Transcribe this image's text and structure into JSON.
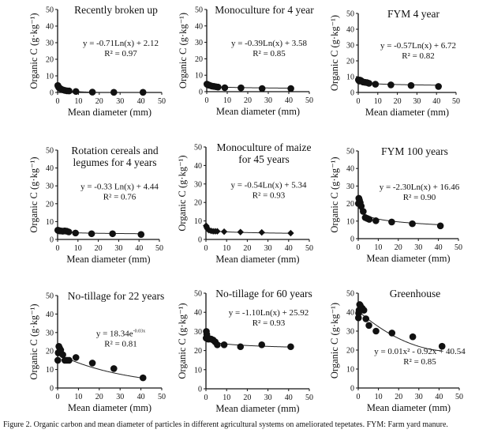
{
  "caption": "Figure 2. Organic carbon and mean diameter of particles in different agricultural systems on ameliorated tepetates. FYM: Farm yard manure.",
  "chart_data": [
    {
      "type": "scatter",
      "title": [
        "Recently broken up"
      ],
      "xlabel": "Mean diameter (mm)",
      "ylabel": "Organic C (g·kg⁻¹)",
      "xlim": [
        0,
        50
      ],
      "ylim": [
        0,
        50
      ],
      "xticks": [
        0,
        10,
        20,
        30,
        40,
        50
      ],
      "yticks": [
        0,
        10,
        20,
        30,
        40,
        50
      ],
      "marker": "circle",
      "equation": "y = -0.71Ln(x) + 2.12",
      "r2": "R² = 0.97",
      "annotation_position": "center",
      "fit": {
        "kind": "log",
        "a": -0.71,
        "b": 2.12
      },
      "points": {
        "x": [
          0.1,
          0.3,
          0.6,
          1.0,
          1.5,
          2.5,
          3.5,
          4.5,
          5.5,
          8.8,
          16.7,
          27.0,
          41.0
        ],
        "y": [
          4.2,
          3.6,
          3.0,
          2.6,
          2.2,
          1.6,
          1.2,
          1.0,
          0.9,
          0.6,
          0.2,
          0.1,
          0.1
        ]
      }
    },
    {
      "type": "scatter",
      "title": [
        "Monoculture for 4 year"
      ],
      "xlabel": "Mean diameter (mm)",
      "ylabel": "Organic C (g·kg⁻¹)",
      "xlim": [
        0,
        50
      ],
      "ylim": [
        0,
        50
      ],
      "xticks": [
        0,
        10,
        20,
        30,
        40,
        50
      ],
      "yticks": [
        0,
        10,
        20,
        30,
        40,
        50
      ],
      "marker": "circle",
      "equation": "y = -0.39Ln(x) + 3.58",
      "r2": "R² = 0.85",
      "annotation_position": "center",
      "fit": {
        "kind": "log",
        "a": -0.39,
        "b": 3.58
      },
      "points": {
        "x": [
          0.1,
          0.3,
          0.6,
          1.0,
          1.5,
          2.5,
          3.5,
          4.5,
          5.5,
          8.8,
          16.7,
          27.0,
          41.0
        ],
        "y": [
          4.6,
          4.4,
          4.2,
          4.0,
          3.8,
          3.4,
          3.2,
          3.0,
          2.8,
          2.4,
          2.3,
          1.9,
          1.9
        ]
      }
    },
    {
      "type": "scatter",
      "title": [
        "FYM 4 year"
      ],
      "xlabel": "Mean diameter (mm)",
      "ylabel": "Organic C (g·kg⁻¹)",
      "xlim": [
        0,
        50
      ],
      "ylim": [
        0,
        50
      ],
      "xticks": [
        0,
        10,
        20,
        30,
        40,
        50
      ],
      "yticks": [
        0,
        10,
        20,
        30,
        40,
        50
      ],
      "marker": "circle",
      "equation": "y = -0.57Ln(x) + 6.72",
      "r2": "R² = 0.82",
      "annotation_position": "center",
      "fit": {
        "kind": "log",
        "a": -0.57,
        "b": 6.72
      },
      "points": {
        "x": [
          0.1,
          0.3,
          0.6,
          1.0,
          1.5,
          2.5,
          3.5,
          4.5,
          5.5,
          8.8,
          16.7,
          27.0,
          41.0
        ],
        "y": [
          8.0,
          7.6,
          7.2,
          7.8,
          7.4,
          6.6,
          6.4,
          6.2,
          5.8,
          5.2,
          4.8,
          4.4,
          3.8
        ]
      }
    },
    {
      "type": "scatter",
      "title": [
        "Rotation cereals and",
        "legumes for 4 years"
      ],
      "xlabel": "Mean diameter (mm)",
      "ylabel": "Organic C (g·kg⁻¹)",
      "xlim": [
        0,
        50
      ],
      "ylim": [
        0,
        50
      ],
      "xticks": [
        0,
        10,
        20,
        30,
        40,
        50
      ],
      "yticks": [
        0,
        10,
        20,
        30,
        40,
        50
      ],
      "marker": "circle",
      "equation": "y = -0.33 Ln(x) + 4.44",
      "r2": "R² = 0.76",
      "annotation_position": "center",
      "fit": {
        "kind": "log",
        "a": -0.33,
        "b": 4.44
      },
      "points": {
        "x": [
          0.1,
          0.3,
          0.6,
          1.0,
          1.5,
          2.5,
          3.5,
          4.5,
          5.5,
          8.8,
          16.7,
          27.0,
          41.0
        ],
        "y": [
          5.2,
          5.0,
          5.0,
          4.8,
          4.8,
          4.6,
          4.8,
          4.6,
          4.2,
          3.6,
          3.2,
          3.2,
          2.8
        ]
      }
    },
    {
      "type": "scatter",
      "title": [
        "Monoculture of maize",
        "for 45 years"
      ],
      "xlabel": "Mean diameter (mm)",
      "ylabel": "Organic C (g·kg⁻¹)",
      "xlim": [
        0,
        50
      ],
      "ylim": [
        0,
        50
      ],
      "xticks": [
        0,
        10,
        20,
        30,
        40,
        50
      ],
      "yticks": [
        0,
        10,
        20,
        30,
        40,
        50
      ],
      "marker": "diamond",
      "equation": "y = -0.54Ln(x) + 5.34",
      "r2": "R² = 0.93",
      "annotation_position": "center",
      "fit": {
        "kind": "log",
        "a": -0.54,
        "b": 5.34
      },
      "points": {
        "x": [
          0.1,
          0.3,
          0.6,
          1.0,
          1.5,
          2.5,
          3.5,
          4.5,
          5.5,
          8.8,
          16.7,
          27.0,
          41.0
        ],
        "y": [
          7.4,
          6.8,
          6.0,
          5.4,
          5.0,
          4.6,
          4.4,
          4.4,
          4.4,
          4.2,
          4.0,
          3.8,
          3.4
        ]
      }
    },
    {
      "type": "scatter",
      "title": [
        "FYM 100 years"
      ],
      "xlabel": "Mean diameter (mm)",
      "ylabel": "Organic C (g·kg⁻¹)",
      "xlim": [
        0,
        50
      ],
      "ylim": [
        0,
        50
      ],
      "xticks": [
        0,
        10,
        20,
        30,
        40,
        50
      ],
      "yticks": [
        0,
        10,
        20,
        30,
        40,
        50
      ],
      "marker": "circle",
      "equation": "y = -2.30Ln(x) + 16.46",
      "r2": "R² = 0.90",
      "annotation_position": "center",
      "fit": {
        "kind": "log",
        "a": -2.3,
        "b": 16.46
      },
      "points": {
        "x": [
          0.1,
          0.3,
          0.6,
          1.0,
          1.5,
          2.5,
          3.5,
          4.5,
          5.5,
          8.8,
          16.7,
          27.0,
          41.0
        ],
        "y": [
          20.0,
          23.0,
          22.0,
          20.5,
          18.5,
          15.5,
          12.0,
          11.5,
          11.0,
          10.2,
          9.5,
          8.5,
          7.3
        ]
      }
    },
    {
      "type": "scatter",
      "title": [
        "No-tillage for 22 years"
      ],
      "xlabel": "Mean diameter (mm)",
      "ylabel": "Organic C (g·kg⁻¹)",
      "xlim": [
        0,
        50
      ],
      "ylim": [
        0,
        50
      ],
      "xticks": [
        0,
        10,
        20,
        30,
        40,
        50
      ],
      "yticks": [
        0,
        10,
        20,
        30,
        40,
        50
      ],
      "marker": "circle",
      "equation_base": "y = 18.34e",
      "equation_exp": "-0.03x",
      "r2": "R² = 0.81",
      "annotation_position": "center",
      "fit": {
        "kind": "exp",
        "a": 18.34,
        "k": -0.03
      },
      "points": {
        "x": [
          0.1,
          0.3,
          0.6,
          1.0,
          1.5,
          2.5,
          3.5,
          4.5,
          5.5,
          8.8,
          16.7,
          27.0,
          41.0
        ],
        "y": [
          15.0,
          19.0,
          22.5,
          21.5,
          20.5,
          18.0,
          15.0,
          15.0,
          15.0,
          16.5,
          13.5,
          10.5,
          5.5
        ]
      }
    },
    {
      "type": "scatter",
      "title": [
        "No-tillage for 60 years"
      ],
      "xlabel": "Mean diameter (mm)",
      "ylabel": "Organic C (g·kg⁻¹)",
      "xlim": [
        0,
        50
      ],
      "ylim": [
        0,
        50
      ],
      "xticks": [
        0,
        10,
        20,
        30,
        40,
        50
      ],
      "yticks": [
        0,
        10,
        20,
        30,
        40,
        50
      ],
      "marker": "circle",
      "equation": "y = -1.10Ln(x) + 25.92",
      "r2": "R² = 0.93",
      "annotation_position": "top",
      "fit": {
        "kind": "log",
        "a": -1.1,
        "b": 25.92
      },
      "points": {
        "x": [
          0.1,
          0.2,
          0.4,
          0.7,
          1.0,
          1.5,
          2.5,
          3.5,
          4.5,
          5.5,
          8.8,
          16.7,
          27.0,
          41.0
        ],
        "y": [
          26.5,
          30.0,
          28.5,
          27.0,
          26.0,
          26.0,
          26.0,
          25.5,
          24.5,
          23.0,
          23.0,
          22.0,
          23.0,
          22.0
        ]
      }
    },
    {
      "type": "scatter",
      "title": [
        "Greenhouse"
      ],
      "xlabel": "Mean diameter (mm)",
      "ylabel": "Organic C (g·kg⁻¹)",
      "xlim": [
        0,
        50
      ],
      "ylim": [
        0,
        50
      ],
      "xticks": [
        0,
        10,
        20,
        30,
        40,
        50
      ],
      "yticks": [
        0,
        10,
        20,
        30,
        40,
        50
      ],
      "marker": "circle",
      "equation": "y = 0.01x² - 0.92x + 40.54",
      "r2": "R² = 0.85",
      "annotation_position": "bottom",
      "fit": {
        "kind": "poly2",
        "a": 0.01,
        "b": -0.92,
        "c": 40.54
      },
      "points": {
        "x": [
          0.1,
          0.2,
          0.4,
          0.7,
          1.0,
          1.5,
          2.0,
          2.8,
          3.8,
          5.3,
          8.8,
          16.7,
          27.0,
          41.5
        ],
        "y": [
          37.0,
          39.5,
          41.0,
          44.0,
          43.5,
          42.5,
          42.0,
          41.0,
          36.5,
          33.0,
          30.0,
          29.0,
          27.0,
          22.0
        ]
      }
    }
  ]
}
